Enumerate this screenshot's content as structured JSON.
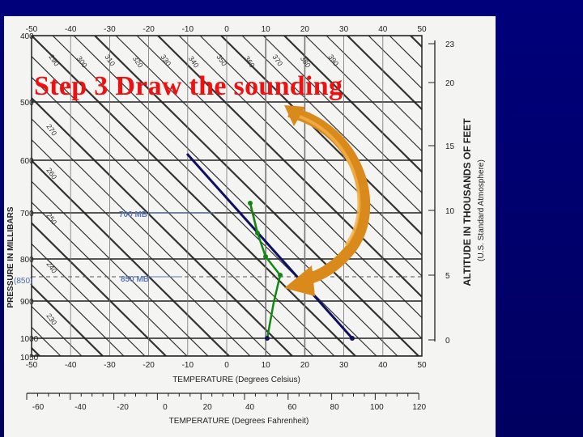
{
  "slide": {
    "title": "Step 3 Draw the sounding"
  },
  "diagram": {
    "temp_c_ticks": [
      "-50",
      "-40",
      "-30",
      "-20",
      "-10",
      "0",
      "10",
      "20",
      "30",
      "40",
      "50"
    ],
    "temp_f_ticks": [
      "-60",
      "-40",
      "-20",
      "0",
      "20",
      "40",
      "60",
      "80",
      "100",
      "120"
    ],
    "pressure_ticks": [
      "400",
      "500",
      "600",
      "700",
      "800",
      "900",
      "1000",
      "1050"
    ],
    "pressure_850_label": "(850)",
    "altitude_ticks": [
      "23",
      "20",
      "15",
      "10",
      "5",
      "0"
    ],
    "pressure_axis_label": "PRESSURE IN MILLIBARS",
    "altitude_axis_label": "ALTITUDE IN THOUSANDS OF FEET",
    "altitude_axis_sublabel": "(U.S. Standard Atmosphere)",
    "temp_c_axis_label": "TEMPERATURE (Degrees Celsius)",
    "temp_f_axis_label": "TEMPERATURE (Degrees Fahrenheit)",
    "level_700_label": "700 MB",
    "level_850_label": "850 MB",
    "adiabat_labels_top": [
      "290",
      "300",
      "310",
      "320",
      "330",
      "340",
      "350",
      "360",
      "370",
      "380",
      "390"
    ],
    "adiabat_labels_left": [
      "270",
      "260",
      "250",
      "240",
      "230"
    ],
    "colors": {
      "background": "#000066",
      "paper": "#f4f4f2",
      "title": "#ee1111",
      "sounding": "#118811",
      "parcel_line": "#101060",
      "red_segment": "#cc2222",
      "arrow": "#d98a1a"
    }
  }
}
